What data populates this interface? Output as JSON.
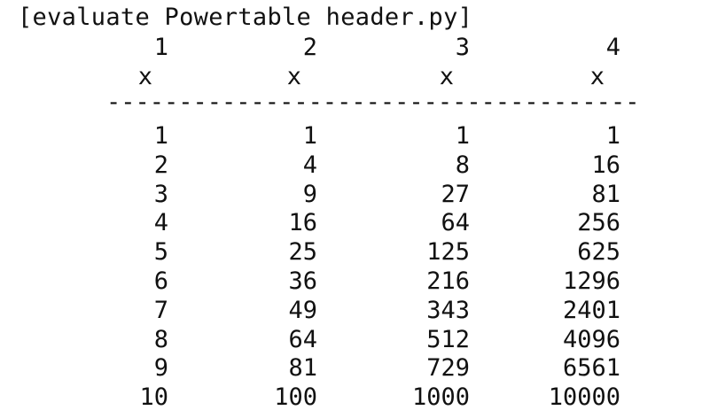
{
  "command": "[evaluate Powertable header.py]",
  "header": {
    "exponents": [
      "1",
      "2",
      "3",
      "4"
    ],
    "bases": [
      "x",
      "x",
      "x",
      "x"
    ]
  },
  "divider": "-------------------------------------",
  "rows": [
    [
      "1",
      "1",
      "1",
      "1"
    ],
    [
      "2",
      "4",
      "8",
      "16"
    ],
    [
      "3",
      "9",
      "27",
      "81"
    ],
    [
      "4",
      "16",
      "64",
      "256"
    ],
    [
      "5",
      "25",
      "125",
      "625"
    ],
    [
      "6",
      "36",
      "216",
      "1296"
    ],
    [
      "7",
      "49",
      "343",
      "2401"
    ],
    [
      "8",
      "64",
      "512",
      "4096"
    ],
    [
      "9",
      "81",
      "729",
      "6561"
    ],
    [
      "10",
      "100",
      "1000",
      "10000"
    ]
  ]
}
